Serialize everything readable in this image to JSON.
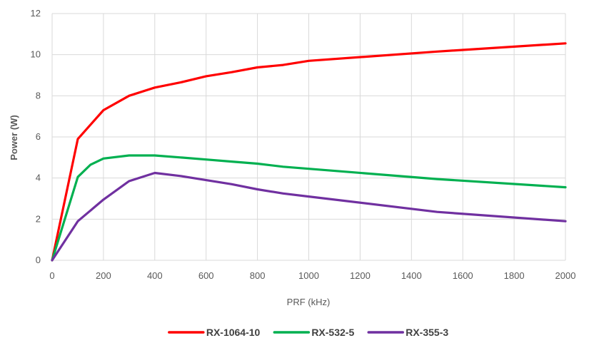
{
  "chart_data": {
    "type": "line",
    "title": "",
    "xlabel": "PRF (kHz)",
    "ylabel": "Power (W)",
    "xlim": [
      0,
      2000
    ],
    "ylim": [
      0,
      12
    ],
    "xticks": [
      "0",
      "200",
      "400",
      "600",
      "800",
      "1000",
      "1200",
      "1400",
      "1600",
      "1800",
      "2000"
    ],
    "yticks": [
      "0",
      "2",
      "4",
      "6",
      "8",
      "10",
      "12"
    ],
    "grid": true,
    "legend_position": "bottom",
    "series": [
      {
        "name": "RX-1064-10",
        "color": "#ff0000",
        "x": [
          0,
          100,
          200,
          300,
          400,
          500,
          600,
          700,
          800,
          900,
          1000,
          1500,
          2000
        ],
        "y": [
          0,
          5.9,
          7.3,
          8.0,
          8.4,
          8.65,
          8.95,
          9.15,
          9.38,
          9.5,
          9.7,
          10.15,
          10.55
        ]
      },
      {
        "name": "RX-532-5",
        "color": "#00b050",
        "x": [
          0,
          100,
          150,
          200,
          300,
          400,
          500,
          600,
          700,
          800,
          900,
          1000,
          1500,
          2000
        ],
        "y": [
          0,
          4.05,
          4.65,
          4.95,
          5.1,
          5.1,
          5.0,
          4.9,
          4.8,
          4.7,
          4.55,
          4.45,
          3.95,
          3.55
        ]
      },
      {
        "name": "RX-355-3",
        "color": "#7030a0",
        "x": [
          0,
          100,
          200,
          300,
          400,
          500,
          600,
          700,
          800,
          900,
          1000,
          1500,
          2000
        ],
        "y": [
          0,
          1.9,
          2.95,
          3.85,
          4.25,
          4.1,
          3.9,
          3.7,
          3.45,
          3.25,
          3.1,
          2.35,
          1.9
        ]
      }
    ]
  }
}
